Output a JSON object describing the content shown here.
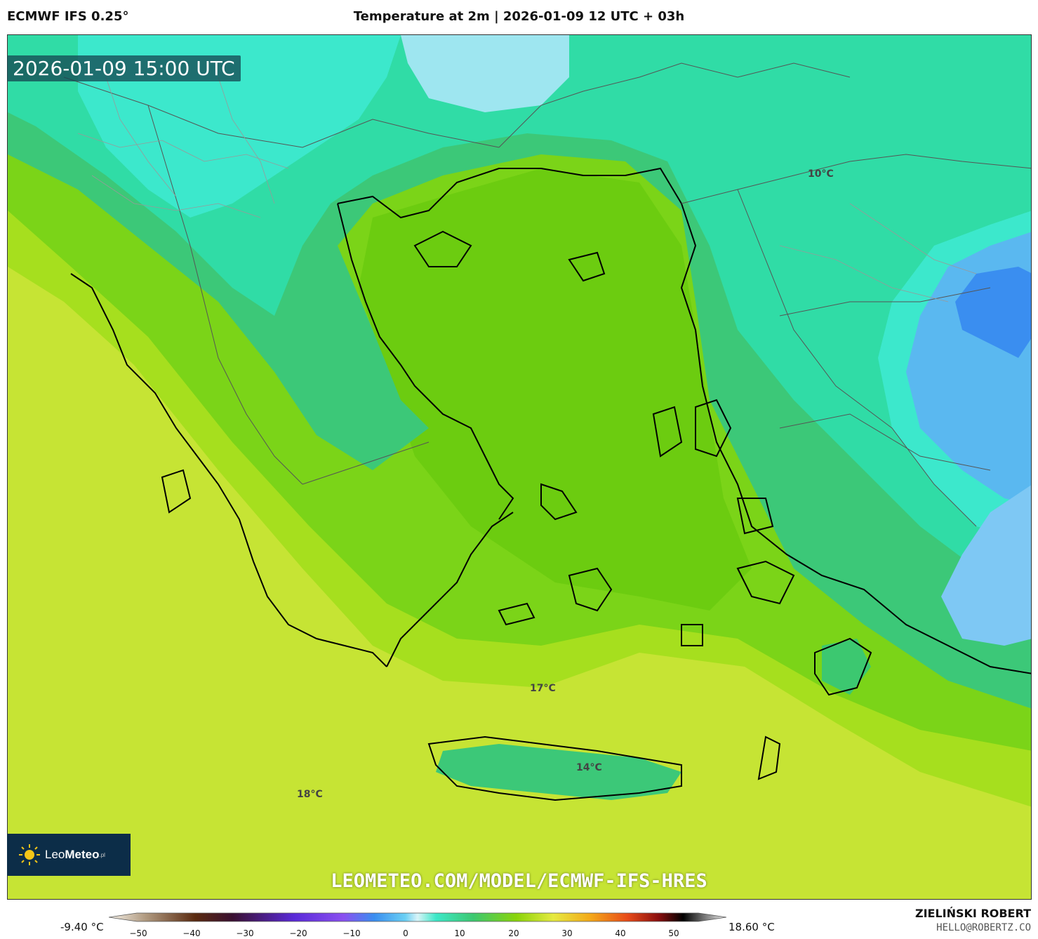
{
  "header": {
    "model": "ECMWF IFS 0.25°",
    "title": "Temperature at 2m | 2026-01-09 12 UTC + 03h"
  },
  "map": {
    "timestamp": "2026-01-09 15:00 UTC",
    "url": "LEOMETEO.COM/MODEL/ECMWF-IFS-HRES",
    "temperature_labels": [
      "10°C",
      "17°C",
      "14°C",
      "18°C"
    ],
    "logo": {
      "name_light": "Leo",
      "name_bold": "Meteo",
      "suffix": ".pl",
      "icon": "sun-icon"
    }
  },
  "colorbar": {
    "min_label": "-9.40 °C",
    "max_label": "18.60 °C",
    "ticks": [
      "−50",
      "−40",
      "−30",
      "−20",
      "−10",
      "0",
      "10",
      "20",
      "30",
      "40",
      "50"
    ],
    "colors": {
      "cold_blue": "#3a8ef0",
      "cyan": "#3ce8c8",
      "green": "#3cc870",
      "lime": "#8ad40a",
      "yellow_green": "#c8e634"
    }
  },
  "credits": {
    "author": "ZIELIŃSKI ROBERT",
    "email": "HELLO@ROBERTZ.CO"
  }
}
